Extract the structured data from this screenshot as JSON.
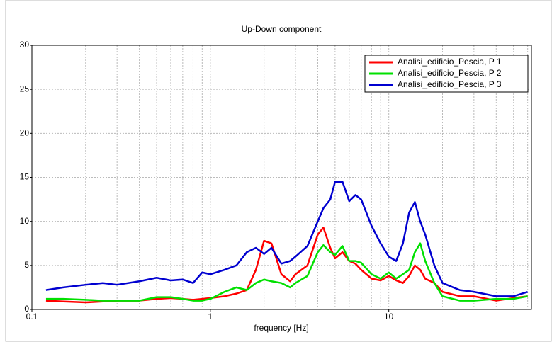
{
  "chart_data": {
    "type": "line",
    "title": "Up-Down component",
    "x_label": "frequency [Hz]",
    "log_x": true,
    "grid": true,
    "legend": "top-right",
    "xlim": [
      0.1,
      63
    ],
    "xticks": [
      0.1,
      1,
      10
    ],
    "ylim": [
      0,
      30
    ],
    "yticks": [
      0,
      5,
      10,
      15,
      20,
      25,
      30
    ],
    "x": [
      0.12,
      0.15,
      0.2,
      0.25,
      0.3,
      0.4,
      0.5,
      0.6,
      0.7,
      0.8,
      0.9,
      1,
      1.2,
      1.4,
      1.6,
      1.8,
      2,
      2.2,
      2.5,
      2.8,
      3,
      3.5,
      4,
      4.3,
      4.7,
      5,
      5.5,
      6,
      6.5,
      7,
      8,
      9,
      10,
      11,
      12,
      13,
      14,
      15,
      16,
      18,
      20,
      25,
      30,
      40,
      50,
      60
    ],
    "series": [
      {
        "name": "Analisi_edificio_Pescia, P 1",
        "color": "#ff0000",
        "values": [
          1.0,
          0.9,
          0.8,
          0.9,
          1.0,
          1.0,
          1.2,
          1.3,
          1.2,
          1.1,
          1.2,
          1.3,
          1.5,
          1.8,
          2.2,
          4.5,
          7.8,
          7.5,
          4.0,
          3.2,
          4.0,
          5.0,
          8.5,
          9.3,
          7.0,
          5.8,
          6.5,
          5.5,
          5.2,
          4.5,
          3.5,
          3.3,
          3.8,
          3.3,
          3.0,
          3.8,
          5.0,
          4.5,
          3.5,
          3.0,
          2.0,
          1.5,
          1.5,
          1.0,
          1.3,
          1.5
        ]
      },
      {
        "name": "Analisi_edificio_Pescia, P 2",
        "color": "#00e000",
        "values": [
          1.2,
          1.2,
          1.1,
          1.0,
          1.0,
          1.0,
          1.4,
          1.4,
          1.2,
          1.0,
          1.0,
          1.2,
          2.0,
          2.5,
          2.2,
          3.0,
          3.4,
          3.2,
          3.0,
          2.5,
          3.0,
          3.8,
          6.5,
          7.3,
          6.5,
          6.2,
          7.2,
          5.5,
          5.5,
          5.3,
          4,
          3.5,
          4.2,
          3.5,
          4.0,
          4.5,
          6.5,
          7.5,
          5.5,
          3,
          1.5,
          1.0,
          1.0,
          1.2,
          1.2,
          1.5
        ]
      },
      {
        "name": "Analisi_edificio_Pescia, P 3",
        "color": "#0000d0",
        "values": [
          2.2,
          2.5,
          2.8,
          3.0,
          2.8,
          3.2,
          3.6,
          3.3,
          3.4,
          3.0,
          4.2,
          4.0,
          4.5,
          5.0,
          6.5,
          7.0,
          6.3,
          7.0,
          5.2,
          5.5,
          6.0,
          7.2,
          10,
          11.5,
          12.5,
          14.5,
          14.5,
          12.3,
          13.0,
          12.5,
          9.5,
          7.5,
          6.0,
          5.5,
          7.5,
          11,
          12.2,
          10,
          8.5,
          5,
          3,
          2.2,
          2.0,
          1.5,
          1.5,
          2.0
        ]
      }
    ]
  }
}
